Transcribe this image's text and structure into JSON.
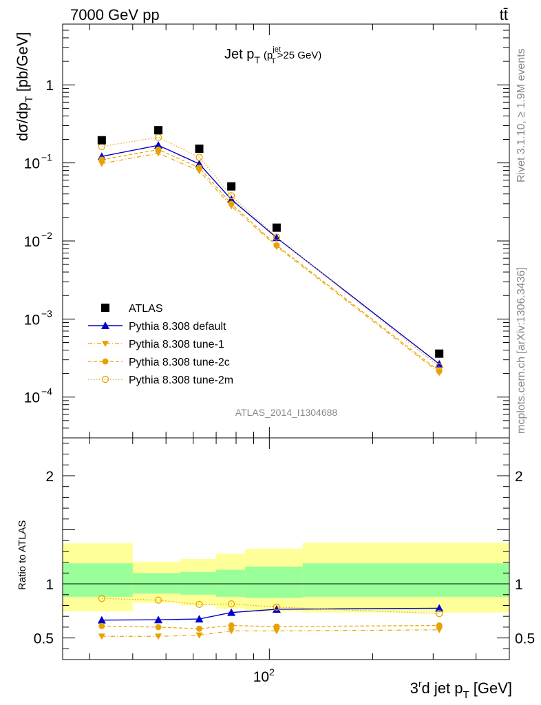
{
  "header": {
    "left": "7000 GeV pp",
    "right": "tt̄"
  },
  "side_text": {
    "rivet": "Rivet 3.1.10, ≥ 1.9M events",
    "mcplots": "mcplots.cern.ch [arXiv:1306.3436]"
  },
  "watermark": "ATLAS_2014_I1304688",
  "chart_data": {
    "type": "scatter",
    "title": {
      "main": "Jet p",
      "main_sub": "T",
      "cond_open": "(p",
      "cond_sup": "jet",
      "cond_sub": "T",
      "cond_rest": ">25 GeV)"
    },
    "ylabel": {
      "a": "dσ/dp",
      "sub": "T",
      "b": " [pb/GeV]"
    },
    "xlabel": {
      "a": "3",
      "sup": "r",
      "b": "d jet p",
      "sub": "T",
      "c": " [GeV]"
    },
    "ratio_ylabel": "Ratio to ATLAS",
    "x_scale": "log",
    "y_scale": "log",
    "xlim": [
      25,
      500
    ],
    "ylim": [
      3e-05,
      6
    ],
    "ratio_ylim": [
      0.3,
      2.35
    ],
    "upper_ticks": [
      {
        "value": 1,
        "mant": "1",
        "exp": ""
      },
      {
        "value": 0.1,
        "mant": "10",
        "exp": "−1"
      },
      {
        "value": 0.01,
        "mant": "10",
        "exp": "−2"
      },
      {
        "value": 0.001,
        "mant": "10",
        "exp": "−3"
      },
      {
        "value": 0.0001,
        "mant": "10",
        "exp": "−4"
      }
    ],
    "ratio_ticks": [
      {
        "value": 0.5,
        "label": "0.5"
      },
      {
        "value": 1,
        "label": "1"
      },
      {
        "value": 2,
        "label": "2"
      }
    ],
    "x_ticks": [
      {
        "value": 100,
        "mant": "10",
        "exp": "2"
      }
    ],
    "bin_edges": [
      25,
      40,
      55,
      70,
      85,
      125,
      500
    ],
    "x": [
      32.5,
      47.5,
      62.5,
      77.5,
      105,
      312.5
    ],
    "legend_position": "lower-left",
    "series": [
      {
        "name": "ATLAS",
        "marker": "square",
        "color": "#000000",
        "values": [
          0.195,
          0.262,
          0.152,
          0.05,
          0.0148,
          0.00036
        ]
      },
      {
        "name": "Pythia 8.308 default",
        "marker": "triangle-up",
        "color": "#0000cc",
        "line": "solid",
        "values": [
          0.121,
          0.168,
          0.097,
          0.034,
          0.011,
          0.000265
        ],
        "ratio": [
          0.665,
          0.668,
          0.675,
          0.735,
          0.765,
          0.775
        ]
      },
      {
        "name": "Pythia 8.308 tune-1",
        "marker": "triangle-down",
        "color": "#e8a200",
        "line": "dashdot",
        "values": [
          0.098,
          0.133,
          0.079,
          0.028,
          0.0085,
          0.000205
        ],
        "ratio": [
          0.515,
          0.515,
          0.525,
          0.565,
          0.565,
          0.575
        ]
      },
      {
        "name": "Pythia 8.308 tune-2c",
        "marker": "circle",
        "color": "#e8a200",
        "line": "dashed",
        "values": [
          0.11,
          0.148,
          0.087,
          0.03,
          0.0088,
          0.000215
        ],
        "ratio": [
          0.61,
          0.6,
          0.585,
          0.615,
          0.605,
          0.615
        ]
      },
      {
        "name": "Pythia 8.308 tune-2m",
        "marker": "circle-open",
        "color": "#e8a200",
        "line": "dotted",
        "values": [
          0.162,
          0.213,
          0.118,
          0.038,
          0.0112,
          0.000245
        ],
        "ratio": [
          0.865,
          0.85,
          0.81,
          0.815,
          0.785,
          0.725
        ]
      }
    ],
    "uncertainty_bands": {
      "green_color": "#99ff99",
      "yellow_color": "#ffff99",
      "green": [
        [
          0.88,
          1.19
        ],
        [
          0.91,
          1.1
        ],
        [
          0.9,
          1.11
        ],
        [
          0.88,
          1.13
        ],
        [
          0.87,
          1.16
        ],
        [
          0.88,
          1.19
        ]
      ],
      "yellow": [
        [
          0.745,
          1.375
        ],
        [
          0.825,
          1.205
        ],
        [
          0.8,
          1.23
        ],
        [
          0.77,
          1.28
        ],
        [
          0.745,
          1.325
        ],
        [
          0.735,
          1.38
        ]
      ]
    }
  }
}
